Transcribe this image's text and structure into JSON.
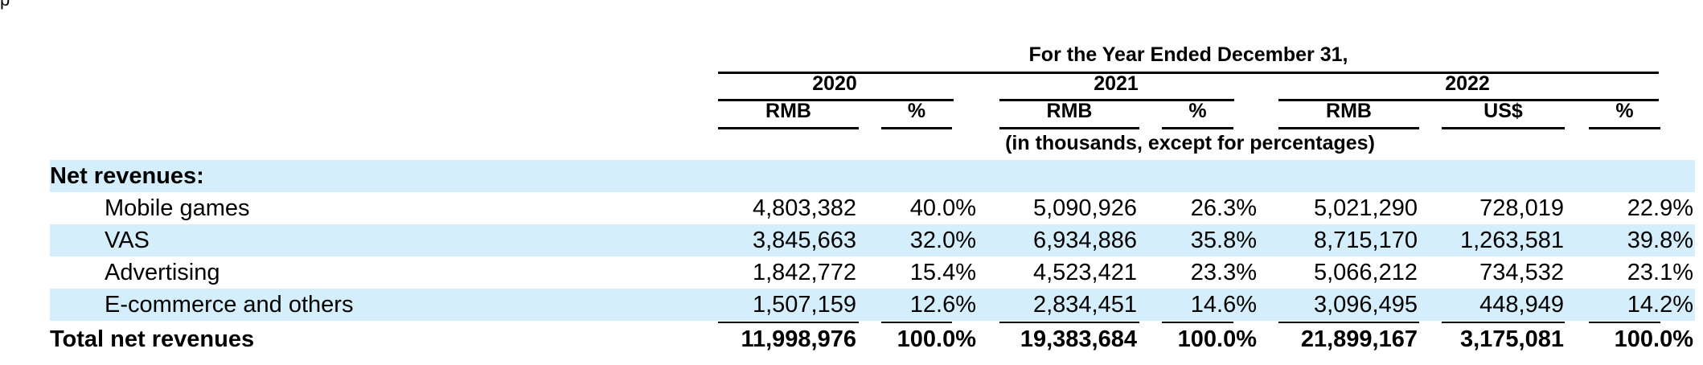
{
  "header": {
    "caption": "For the Year Ended December 31,",
    "years": [
      "2020",
      "2021",
      "2022"
    ],
    "columns": [
      "RMB",
      "%",
      "RMB",
      "%",
      "RMB",
      "US$",
      "%"
    ],
    "units_note": "(in thousands, except for percentages)"
  },
  "section": {
    "label": "Net revenues:"
  },
  "rows": [
    {
      "label": "Mobile games",
      "values": [
        "4,803,382",
        "40.0%",
        "5,090,926",
        "26.3%",
        "5,021,290",
        "728,019",
        "22.9%"
      ]
    },
    {
      "label": "VAS",
      "values": [
        "3,845,663",
        "32.0%",
        "6,934,886",
        "35.8%",
        "8,715,170",
        "1,263,581",
        "39.8%"
      ]
    },
    {
      "label": "Advertising",
      "values": [
        "1,842,772",
        "15.4%",
        "4,523,421",
        "23.3%",
        "5,066,212",
        "734,532",
        "23.1%"
      ]
    },
    {
      "label": "E-commerce and others",
      "values": [
        "1,507,159",
        "12.6%",
        "2,834,451",
        "14.6%",
        "3,096,495",
        "448,949",
        "14.2%"
      ]
    }
  ],
  "total": {
    "label": "Total net revenues",
    "values": [
      "11,998,976",
      "100.0%",
      "19,383,684",
      "100.0%",
      "21,899,167",
      "3,175,081",
      "100.0%"
    ]
  },
  "colors": {
    "band": "#d4effb",
    "text": "#000000"
  }
}
